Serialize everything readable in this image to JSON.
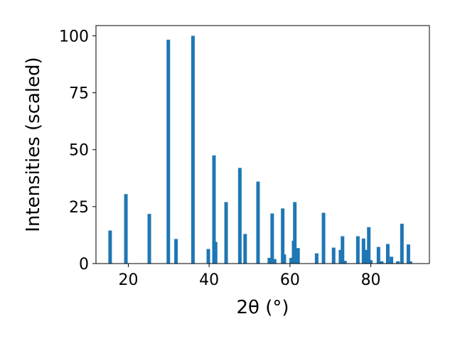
{
  "chart_data": {
    "type": "bar",
    "xlabel": "2θ (°)",
    "ylabel": "Intensities (scaled)",
    "xlim": [
      12,
      94.5
    ],
    "ylim": [
      0,
      104.5
    ],
    "xticks": [
      20,
      40,
      60,
      80
    ],
    "yticks": [
      0,
      25,
      50,
      75,
      100
    ],
    "grid": false,
    "bar_color": "#1f77b4",
    "series": [
      {
        "x": [
          15.5,
          19.4,
          25.2,
          29.9,
          31.8,
          36.0,
          39.8,
          41.2,
          41.6,
          44.2,
          47.6,
          48.9,
          52.1,
          54.9,
          55.6,
          56.2,
          58.2,
          58.6,
          60.3,
          60.9,
          61.2,
          62.0,
          66.6,
          68.3,
          70.8,
          72.5,
          73.0,
          73.6,
          76.8,
          78.2,
          78.9,
          79.5,
          80.0,
          81.9,
          82.7,
          84.2,
          85.1,
          86.7,
          87.7,
          89.3,
          89.8
        ],
        "y": [
          14.5,
          30.5,
          21.8,
          98.3,
          10.8,
          100.0,
          6.4,
          47.5,
          9.5,
          27.0,
          42.0,
          13.0,
          36.0,
          2.5,
          22.0,
          2.0,
          24.2,
          4.0,
          2.5,
          10.0,
          27.0,
          6.8,
          4.5,
          22.3,
          7.0,
          6.0,
          12.0,
          1.2,
          12.0,
          11.0,
          6.0,
          16.0,
          1.5,
          7.3,
          1.0,
          8.6,
          3.0,
          1.0,
          17.5,
          8.4,
          1.0
        ]
      }
    ]
  }
}
